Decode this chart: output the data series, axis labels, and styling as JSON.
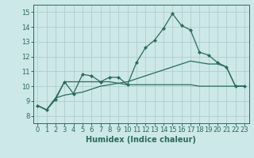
{
  "xlabel": "Humidex (Indice chaleur)",
  "x": [
    0,
    1,
    2,
    3,
    4,
    5,
    6,
    7,
    8,
    9,
    10,
    11,
    12,
    13,
    14,
    15,
    16,
    17,
    18,
    19,
    20,
    21,
    22,
    23
  ],
  "line1": [
    8.7,
    8.4,
    9.1,
    10.3,
    9.5,
    10.8,
    10.7,
    10.3,
    10.6,
    10.6,
    10.1,
    11.6,
    12.6,
    13.1,
    13.9,
    14.9,
    14.1,
    13.8,
    12.3,
    12.1,
    11.6,
    11.3,
    10.0,
    10.0
  ],
  "line2": [
    8.7,
    8.4,
    9.2,
    10.3,
    10.3,
    10.3,
    10.3,
    10.3,
    10.3,
    10.2,
    10.1,
    10.1,
    10.1,
    10.1,
    10.1,
    10.1,
    10.1,
    10.1,
    10.0,
    10.0,
    10.0,
    10.0,
    10.0,
    10.0
  ],
  "line3": [
    8.7,
    8.4,
    9.2,
    9.4,
    9.5,
    9.6,
    9.8,
    10.0,
    10.1,
    10.2,
    10.3,
    10.5,
    10.7,
    10.9,
    11.1,
    11.3,
    11.5,
    11.7,
    11.6,
    11.5,
    11.5,
    11.3,
    10.0,
    10.0
  ],
  "bg_color": "#cce8e8",
  "grid_color": "#b0cccc",
  "line_color": "#2a6b5a",
  "ylim": [
    7.5,
    15.5
  ],
  "xlim": [
    -0.5,
    23.5
  ],
  "yticks": [
    8,
    9,
    10,
    11,
    12,
    13,
    14,
    15
  ],
  "xticks": [
    0,
    1,
    2,
    3,
    4,
    5,
    6,
    7,
    8,
    9,
    10,
    11,
    12,
    13,
    14,
    15,
    16,
    17,
    18,
    19,
    20,
    21,
    22,
    23
  ],
  "tick_fontsize": 6.0,
  "xlabel_fontsize": 7.0,
  "marker_size": 2.5,
  "line_width": 0.9
}
